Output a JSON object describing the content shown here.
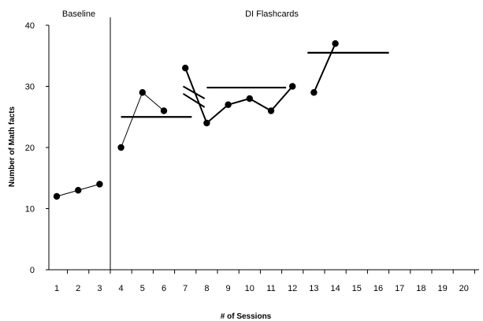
{
  "chart_data": {
    "type": "line",
    "title": "",
    "xlabel": "# of Sessions",
    "ylabel": "Number of Math facts",
    "xlim": [
      1,
      20
    ],
    "ylim": [
      0,
      40
    ],
    "x_ticks": [
      1,
      2,
      3,
      4,
      5,
      6,
      7,
      8,
      9,
      10,
      11,
      12,
      13,
      14,
      15,
      16,
      17,
      18,
      19,
      20
    ],
    "y_ticks": [
      0,
      10,
      20,
      30,
      40
    ],
    "grid": false,
    "phases": [
      {
        "label": "Baseline",
        "start_session": 1,
        "end_session": 3
      },
      {
        "label": "DI Flashcards",
        "start_session": 4,
        "end_session": 14
      }
    ],
    "phase_change_after_session": 3.5,
    "segments": [
      {
        "x": [
          1,
          2,
          3
        ],
        "y": [
          12,
          13,
          14
        ]
      },
      {
        "x": [
          4,
          5,
          6
        ],
        "y": [
          20,
          29,
          26
        ]
      },
      {
        "x": [
          7,
          8,
          9,
          10,
          11,
          12
        ],
        "y": [
          33,
          24,
          27,
          28,
          26,
          30
        ]
      },
      {
        "x": [
          13,
          14
        ],
        "y": [
          29,
          37
        ]
      }
    ],
    "goal_lines": [
      {
        "x": [
          4,
          7.3
        ],
        "y": 25
      },
      {
        "x": [
          8,
          11.7
        ],
        "y": 29.8
      },
      {
        "x": [
          12.7,
          16.5
        ],
        "y": 35.5
      }
    ],
    "break_marks": [
      {
        "x": [
          6.9,
          7.9
        ],
        "y": [
          30,
          28
        ]
      },
      {
        "x": [
          6.9,
          7.9
        ],
        "y": [
          28.8,
          26.6
        ]
      }
    ]
  }
}
